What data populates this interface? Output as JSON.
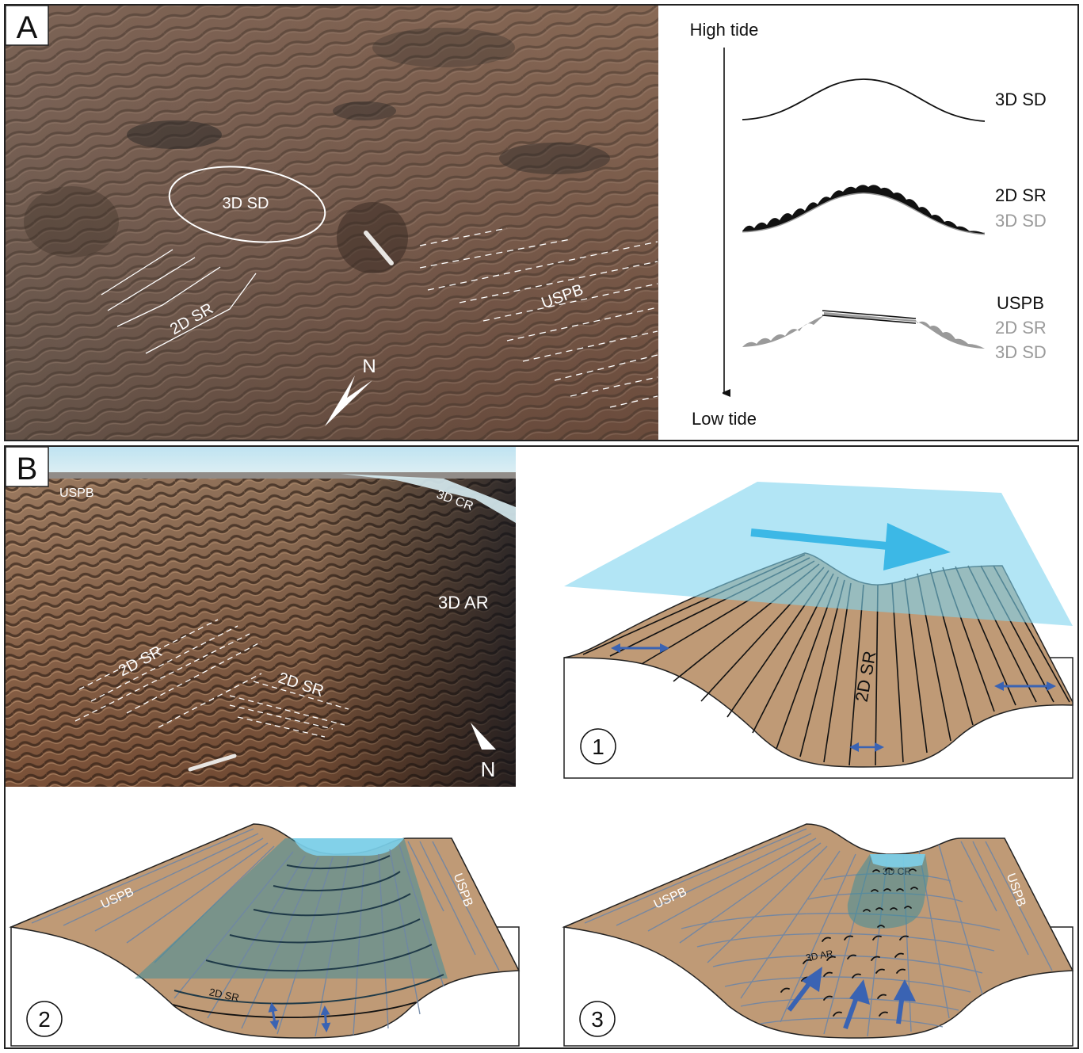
{
  "panel_a": {
    "letter": "A",
    "photo_labels": {
      "sd": "3D SD",
      "sr": "2D SR",
      "uspb": "USPB",
      "north": "N"
    },
    "timeline": {
      "top": "High tide",
      "bottom": "Low tide"
    },
    "stages": [
      {
        "lines": [
          {
            "text": "3D SD",
            "color": "#111111"
          }
        ]
      },
      {
        "lines": [
          {
            "text": "2D SR",
            "color": "#111111"
          },
          {
            "text": "3D SD",
            "color": "#9a9a9a"
          }
        ]
      },
      {
        "lines": [
          {
            "text": "USPB",
            "color": "#111111"
          },
          {
            "text": "2D SR",
            "color": "#9a9a9a"
          },
          {
            "text": "3D SD",
            "color": "#9a9a9a"
          }
        ]
      }
    ]
  },
  "panel_b": {
    "letter": "B",
    "photo_labels": {
      "uspb": "USPB",
      "cr": "3D CR",
      "ar": "3D AR",
      "sr1": "2D SR",
      "sr2": "2D SR",
      "north": "N"
    },
    "step1": {
      "number": "1",
      "sr": "2D SR"
    },
    "step2": {
      "number": "2",
      "sr": "2D SR",
      "uspb_left": "USPB",
      "uspb_right": "USPB"
    },
    "step3": {
      "number": "3",
      "cr": "3D CR",
      "ar": "3D AR",
      "uspb_left": "USPB",
      "uspb_right": "USPB"
    }
  },
  "colors": {
    "sand": "#bf9a76",
    "water": "#7fd3ee",
    "water_dark": "#3f8e9a",
    "arrow_blue": "#3a63b3",
    "flow_arrow": "#3cb8e6"
  }
}
